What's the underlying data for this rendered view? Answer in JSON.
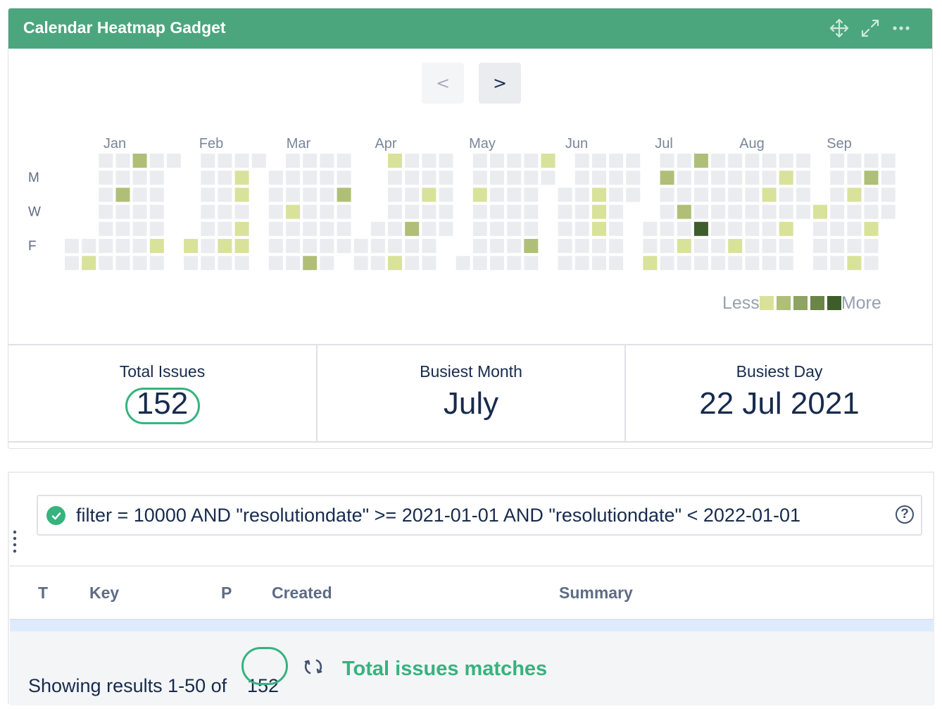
{
  "gadget": {
    "title": "Calendar Heatmap Gadget",
    "header_color": "#4ba67d",
    "icons": [
      "move-icon",
      "expand-icon",
      "more-icon"
    ]
  },
  "nav": {
    "prev_label": "<",
    "next_label": ">"
  },
  "heatmap": {
    "months": [
      "Jan",
      "Feb",
      "Mar",
      "Apr",
      "May",
      "Jun",
      "Jul",
      "Aug",
      "Sep"
    ],
    "weekday_labels": [
      {
        "row": 1,
        "label": "M"
      },
      {
        "row": 3,
        "label": "W"
      },
      {
        "row": 5,
        "label": "F"
      }
    ],
    "empty_color": "#ebecf0",
    "level_colors": [
      "#ebecf0",
      "#d8e29b",
      "#afbf78",
      "#8fa464",
      "#6b8448",
      "#3d5e2a"
    ],
    "weeks": [
      [
        -1,
        -1,
        -1,
        -1,
        -1,
        0,
        0
      ],
      [
        -1,
        -1,
        -1,
        -1,
        -1,
        0,
        1
      ],
      [
        0,
        0,
        0,
        0,
        0,
        0,
        0
      ],
      [
        0,
        0,
        2,
        0,
        0,
        0,
        0
      ],
      [
        2,
        0,
        0,
        0,
        0,
        0,
        0
      ],
      [
        0,
        0,
        0,
        0,
        0,
        1,
        0
      ],
      [
        0,
        -1,
        -1,
        -1,
        -1,
        -1,
        -1
      ],
      [
        -1,
        -1,
        -1,
        -1,
        -1,
        1,
        0
      ],
      [
        0,
        0,
        0,
        0,
        0,
        0,
        0
      ],
      [
        0,
        0,
        0,
        0,
        0,
        1,
        0
      ],
      [
        0,
        1,
        1,
        0,
        1,
        1,
        0
      ],
      [
        0,
        -1,
        -1,
        -1,
        -1,
        -1,
        -1
      ],
      [
        -1,
        0,
        0,
        0,
        0,
        0,
        0
      ],
      [
        0,
        0,
        0,
        1,
        0,
        0,
        0
      ],
      [
        0,
        0,
        0,
        0,
        0,
        0,
        2
      ],
      [
        0,
        0,
        0,
        0,
        0,
        0,
        0
      ],
      [
        0,
        0,
        2,
        0,
        0,
        0,
        -1
      ],
      [
        -1,
        -1,
        -1,
        -1,
        -1,
        0,
        0
      ],
      [
        -1,
        -1,
        -1,
        -1,
        0,
        0,
        0
      ],
      [
        1,
        0,
        0,
        0,
        0,
        0,
        1
      ],
      [
        0,
        0,
        0,
        0,
        2,
        0,
        0
      ],
      [
        0,
        0,
        1,
        0,
        0,
        0,
        0
      ],
      [
        0,
        0,
        0,
        0,
        0,
        -1,
        -1
      ],
      [
        -1,
        -1,
        -1,
        -1,
        -1,
        -1,
        0
      ],
      [
        0,
        0,
        1,
        0,
        0,
        0,
        0
      ],
      [
        0,
        0,
        0,
        0,
        0,
        0,
        0
      ],
      [
        0,
        0,
        0,
        0,
        0,
        0,
        0
      ],
      [
        0,
        0,
        0,
        0,
        0,
        2,
        0
      ],
      [
        1,
        0,
        -1,
        -1,
        -1,
        -1,
        -1
      ],
      [
        -1,
        -1,
        0,
        0,
        0,
        0,
        0
      ],
      [
        0,
        0,
        0,
        0,
        0,
        0,
        0
      ],
      [
        0,
        0,
        1,
        1,
        1,
        0,
        0
      ],
      [
        0,
        0,
        0,
        0,
        0,
        0,
        0
      ],
      [
        0,
        0,
        0,
        -1,
        -1,
        -1,
        -1
      ],
      [
        -1,
        -1,
        -1,
        -1,
        0,
        0,
        1
      ],
      [
        0,
        2,
        0,
        0,
        0,
        0,
        0
      ],
      [
        0,
        0,
        0,
        2,
        0,
        1,
        0
      ],
      [
        2,
        0,
        0,
        0,
        5,
        0,
        0
      ],
      [
        0,
        0,
        0,
        0,
        0,
        0,
        0
      ],
      [
        0,
        0,
        0,
        0,
        0,
        1,
        0
      ],
      [
        0,
        0,
        0,
        0,
        0,
        0,
        0
      ],
      [
        0,
        0,
        1,
        0,
        0,
        0,
        0
      ],
      [
        0,
        1,
        0,
        0,
        1,
        0,
        0
      ],
      [
        0,
        0,
        0,
        0,
        -1,
        -1,
        -1
      ],
      [
        -1,
        -1,
        -1,
        1,
        0,
        0,
        0
      ],
      [
        0,
        0,
        0,
        0,
        0,
        0,
        0
      ],
      [
        0,
        0,
        1,
        0,
        0,
        0,
        1
      ],
      [
        0,
        2,
        0,
        0,
        1,
        0,
        0
      ],
      [
        0,
        0,
        0,
        0,
        -1,
        -1,
        -1
      ]
    ],
    "legend": {
      "less_label": "Less",
      "more_label": "More"
    }
  },
  "stats": {
    "total_label": "Total Issues",
    "total_value": "152",
    "month_label": "Busiest Month",
    "month_value": "July",
    "day_label": "Busiest Day",
    "day_value": "22 Jul 2021"
  },
  "results": {
    "jql": "filter = 10000 AND \"resolutiondate\" >= 2021-01-01 AND \"resolutiondate\" < 2022-01-01",
    "help_label": "?",
    "columns": [
      "T",
      "Key",
      "P",
      "Created",
      "Summary"
    ],
    "showing_text": "Showing results 1-50 of",
    "showing_count": "152",
    "matches_label": "Total issues matches",
    "accent_color": "#36b37e"
  }
}
